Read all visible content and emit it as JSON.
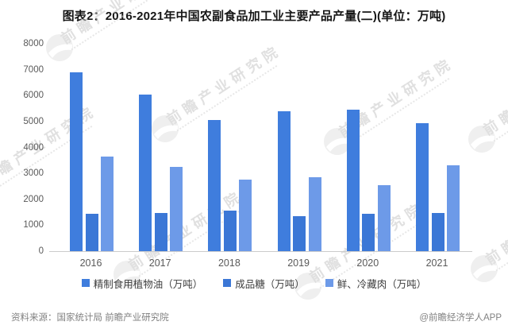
{
  "title": "图表2：2016-2021年中国农副食品加工业主要产品产量(二)(单位：万吨)",
  "chart_data": {
    "type": "bar",
    "categories": [
      "2016",
      "2017",
      "2018",
      "2019",
      "2020",
      "2021"
    ],
    "series": [
      {
        "key": "refined-edible-vegetable-oil",
        "name": "精制食用植物油（万吨）",
        "color": "#3f7ddd",
        "values": [
          6900,
          6050,
          5050,
          5400,
          5450,
          4950
        ]
      },
      {
        "key": "refined-sugar",
        "name": "成品糖（万吨）",
        "color": "#3b77d6",
        "values": [
          1450,
          1470,
          1550,
          1350,
          1430,
          1460
        ]
      },
      {
        "key": "fresh-chilled-meat",
        "name": "鲜、冷藏肉（万吨）",
        "color": "#6d9ae8",
        "values": [
          3650,
          3250,
          2750,
          2850,
          2550,
          3300
        ]
      }
    ],
    "ylim": [
      0,
      8000
    ],
    "ytick_step": 1000,
    "grid": false,
    "legend_position": "bottom",
    "xlabel": "",
    "ylabel": ""
  },
  "watermark": {
    "text": "前瞻产业研究院",
    "logo": "qianzhan-logo"
  },
  "footer": {
    "source": "资料来源：国家统计局 前瞻产业研究院",
    "credit": "@前瞻经济学人APP"
  }
}
